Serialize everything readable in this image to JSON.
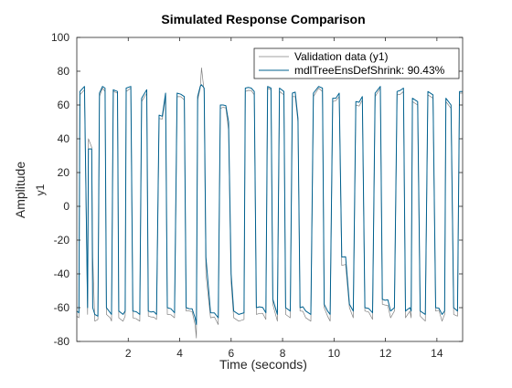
{
  "chart_data": {
    "type": "line",
    "title": "Simulated Response Comparison",
    "xlabel": "Time (seconds)",
    "ylabel": "Amplitude",
    "channel_label": "y1",
    "xlim": [
      0,
      15
    ],
    "ylim": [
      -80,
      100
    ],
    "xticks": [
      2,
      4,
      6,
      8,
      10,
      12,
      14
    ],
    "yticks": [
      -80,
      -60,
      -40,
      -20,
      0,
      20,
      40,
      60,
      80,
      100
    ],
    "legend_position": "top-right",
    "grid": false,
    "series": [
      {
        "name": "Validation data (y1)",
        "color": "#808080",
        "values": [
          [
            0.0,
            -65
          ],
          [
            0.08,
            -66
          ],
          [
            0.12,
            66
          ],
          [
            0.3,
            69
          ],
          [
            0.42,
            -64
          ],
          [
            0.45,
            40
          ],
          [
            0.58,
            35
          ],
          [
            0.62,
            -30
          ],
          [
            0.7,
            -68
          ],
          [
            0.82,
            -67
          ],
          [
            0.88,
            65
          ],
          [
            1.0,
            70
          ],
          [
            1.1,
            68
          ],
          [
            1.15,
            -64
          ],
          [
            1.3,
            -66
          ],
          [
            1.35,
            -68
          ],
          [
            1.42,
            68
          ],
          [
            1.58,
            67
          ],
          [
            1.63,
            -66
          ],
          [
            1.8,
            -68
          ],
          [
            1.88,
            -65
          ],
          [
            1.92,
            68
          ],
          [
            2.1,
            70
          ],
          [
            2.18,
            -66
          ],
          [
            2.45,
            -68
          ],
          [
            2.52,
            62
          ],
          [
            2.72,
            67
          ],
          [
            2.78,
            -65
          ],
          [
            3.1,
            -67
          ],
          [
            3.2,
            52
          ],
          [
            3.45,
            65
          ],
          [
            3.52,
            -64
          ],
          [
            3.8,
            -66
          ],
          [
            3.9,
            65
          ],
          [
            4.18,
            63
          ],
          [
            4.25,
            -62
          ],
          [
            4.6,
            -70
          ],
          [
            4.65,
            -78
          ],
          [
            4.7,
            63
          ],
          [
            4.8,
            70
          ],
          [
            4.85,
            82
          ],
          [
            4.95,
            68
          ],
          [
            5.02,
            -40
          ],
          [
            5.2,
            -66
          ],
          [
            5.5,
            -70
          ],
          [
            5.58,
            58
          ],
          [
            5.9,
            45
          ],
          [
            6.0,
            -45
          ],
          [
            6.1,
            -66
          ],
          [
            6.3,
            -68
          ],
          [
            6.5,
            -67
          ],
          [
            6.55,
            68
          ],
          [
            6.9,
            66
          ],
          [
            6.98,
            -64
          ],
          [
            7.35,
            -67
          ],
          [
            7.42,
            70
          ],
          [
            7.55,
            69
          ],
          [
            7.62,
            -58
          ],
          [
            7.8,
            -68
          ],
          [
            7.88,
            68
          ],
          [
            8.05,
            66
          ],
          [
            8.12,
            -64
          ],
          [
            8.3,
            -66
          ],
          [
            8.38,
            65
          ],
          [
            8.6,
            50
          ],
          [
            8.68,
            -62
          ],
          [
            8.9,
            -66
          ],
          [
            9.1,
            -68
          ],
          [
            9.2,
            65
          ],
          [
            9.4,
            70
          ],
          [
            9.55,
            68
          ],
          [
            9.62,
            -60
          ],
          [
            9.75,
            -65
          ],
          [
            9.85,
            -68
          ],
          [
            9.95,
            62
          ],
          [
            10.2,
            65
          ],
          [
            10.3,
            -35
          ],
          [
            10.6,
            -60
          ],
          [
            10.75,
            -66
          ],
          [
            10.85,
            60
          ],
          [
            11.1,
            63
          ],
          [
            11.2,
            -62
          ],
          [
            11.5,
            -67
          ],
          [
            11.6,
            65
          ],
          [
            11.8,
            70
          ],
          [
            11.88,
            -58
          ],
          [
            12.2,
            -66
          ],
          [
            12.35,
            -62
          ],
          [
            12.45,
            66
          ],
          [
            12.7,
            68
          ],
          [
            12.78,
            -66
          ],
          [
            12.95,
            -62
          ],
          [
            13.0,
            -66
          ],
          [
            13.05,
            62
          ],
          [
            13.25,
            60
          ],
          [
            13.35,
            -65
          ],
          [
            13.55,
            -68
          ],
          [
            13.65,
            66
          ],
          [
            13.85,
            64
          ],
          [
            13.95,
            -62
          ],
          [
            14.2,
            -68
          ],
          [
            14.3,
            -64
          ],
          [
            14.35,
            62
          ],
          [
            14.55,
            58
          ],
          [
            14.65,
            -64
          ],
          [
            14.8,
            -65
          ],
          [
            14.88,
            67
          ],
          [
            15.0,
            67
          ]
        ]
      },
      {
        "name": "mdlTreeEnsDefShrink: 90.43%",
        "color": "#00618f",
        "values": [
          [
            0.0,
            -62
          ],
          [
            0.08,
            -63
          ],
          [
            0.12,
            68
          ],
          [
            0.3,
            71
          ],
          [
            0.42,
            -60
          ],
          [
            0.45,
            34
          ],
          [
            0.58,
            34
          ],
          [
            0.62,
            -60
          ],
          [
            0.7,
            -64
          ],
          [
            0.82,
            -65
          ],
          [
            0.88,
            67
          ],
          [
            1.0,
            71
          ],
          [
            1.1,
            70
          ],
          [
            1.15,
            -60
          ],
          [
            1.3,
            -63
          ],
          [
            1.35,
            -64
          ],
          [
            1.42,
            69
          ],
          [
            1.58,
            68
          ],
          [
            1.63,
            -62
          ],
          [
            1.8,
            -64
          ],
          [
            1.88,
            -62
          ],
          [
            1.92,
            70
          ],
          [
            2.1,
            71
          ],
          [
            2.18,
            -62
          ],
          [
            2.45,
            -64
          ],
          [
            2.52,
            64
          ],
          [
            2.72,
            69
          ],
          [
            2.78,
            -62
          ],
          [
            3.1,
            -64
          ],
          [
            3.2,
            54
          ],
          [
            3.45,
            67
          ],
          [
            3.52,
            -60
          ],
          [
            3.8,
            -63
          ],
          [
            3.9,
            67
          ],
          [
            4.18,
            65
          ],
          [
            4.25,
            -60
          ],
          [
            4.6,
            -66
          ],
          [
            4.65,
            -70
          ],
          [
            4.7,
            65
          ],
          [
            4.8,
            71
          ],
          [
            4.85,
            72
          ],
          [
            4.95,
            70
          ],
          [
            5.02,
            -30
          ],
          [
            5.2,
            -63
          ],
          [
            5.5,
            -66
          ],
          [
            5.58,
            60
          ],
          [
            5.9,
            50
          ],
          [
            6.0,
            -40
          ],
          [
            6.1,
            -62
          ],
          [
            6.3,
            -64
          ],
          [
            6.5,
            -63
          ],
          [
            6.55,
            70
          ],
          [
            6.9,
            68
          ],
          [
            6.98,
            -60
          ],
          [
            7.35,
            -63
          ],
          [
            7.42,
            71
          ],
          [
            7.55,
            70
          ],
          [
            7.62,
            -55
          ],
          [
            7.8,
            -64
          ],
          [
            7.88,
            70
          ],
          [
            8.05,
            68
          ],
          [
            8.12,
            -60
          ],
          [
            8.3,
            -62
          ],
          [
            8.38,
            67
          ],
          [
            8.6,
            52
          ],
          [
            8.68,
            -60
          ],
          [
            8.9,
            -62
          ],
          [
            9.1,
            -64
          ],
          [
            9.2,
            67
          ],
          [
            9.4,
            71
          ],
          [
            9.55,
            70
          ],
          [
            9.62,
            -58
          ],
          [
            9.75,
            -62
          ],
          [
            9.85,
            -64
          ],
          [
            9.95,
            64
          ],
          [
            10.2,
            67
          ],
          [
            10.3,
            -30
          ],
          [
            10.6,
            -58
          ],
          [
            10.75,
            -62
          ],
          [
            10.85,
            62
          ],
          [
            11.1,
            65
          ],
          [
            11.2,
            -60
          ],
          [
            11.5,
            -63
          ],
          [
            11.6,
            67
          ],
          [
            11.8,
            71
          ],
          [
            11.88,
            -55
          ],
          [
            12.2,
            -62
          ],
          [
            12.35,
            -60
          ],
          [
            12.45,
            68
          ],
          [
            12.7,
            70
          ],
          [
            12.78,
            -62
          ],
          [
            12.95,
            -60
          ],
          [
            13.0,
            -62
          ],
          [
            13.05,
            64
          ],
          [
            13.25,
            62
          ],
          [
            13.35,
            -62
          ],
          [
            13.55,
            -64
          ],
          [
            13.65,
            68
          ],
          [
            13.85,
            66
          ],
          [
            13.95,
            -60
          ],
          [
            14.2,
            -64
          ],
          [
            14.3,
            -62
          ],
          [
            14.35,
            64
          ],
          [
            14.55,
            60
          ],
          [
            14.65,
            -60
          ],
          [
            14.8,
            -62
          ],
          [
            14.88,
            68
          ],
          [
            15.0,
            68
          ]
        ]
      }
    ]
  }
}
